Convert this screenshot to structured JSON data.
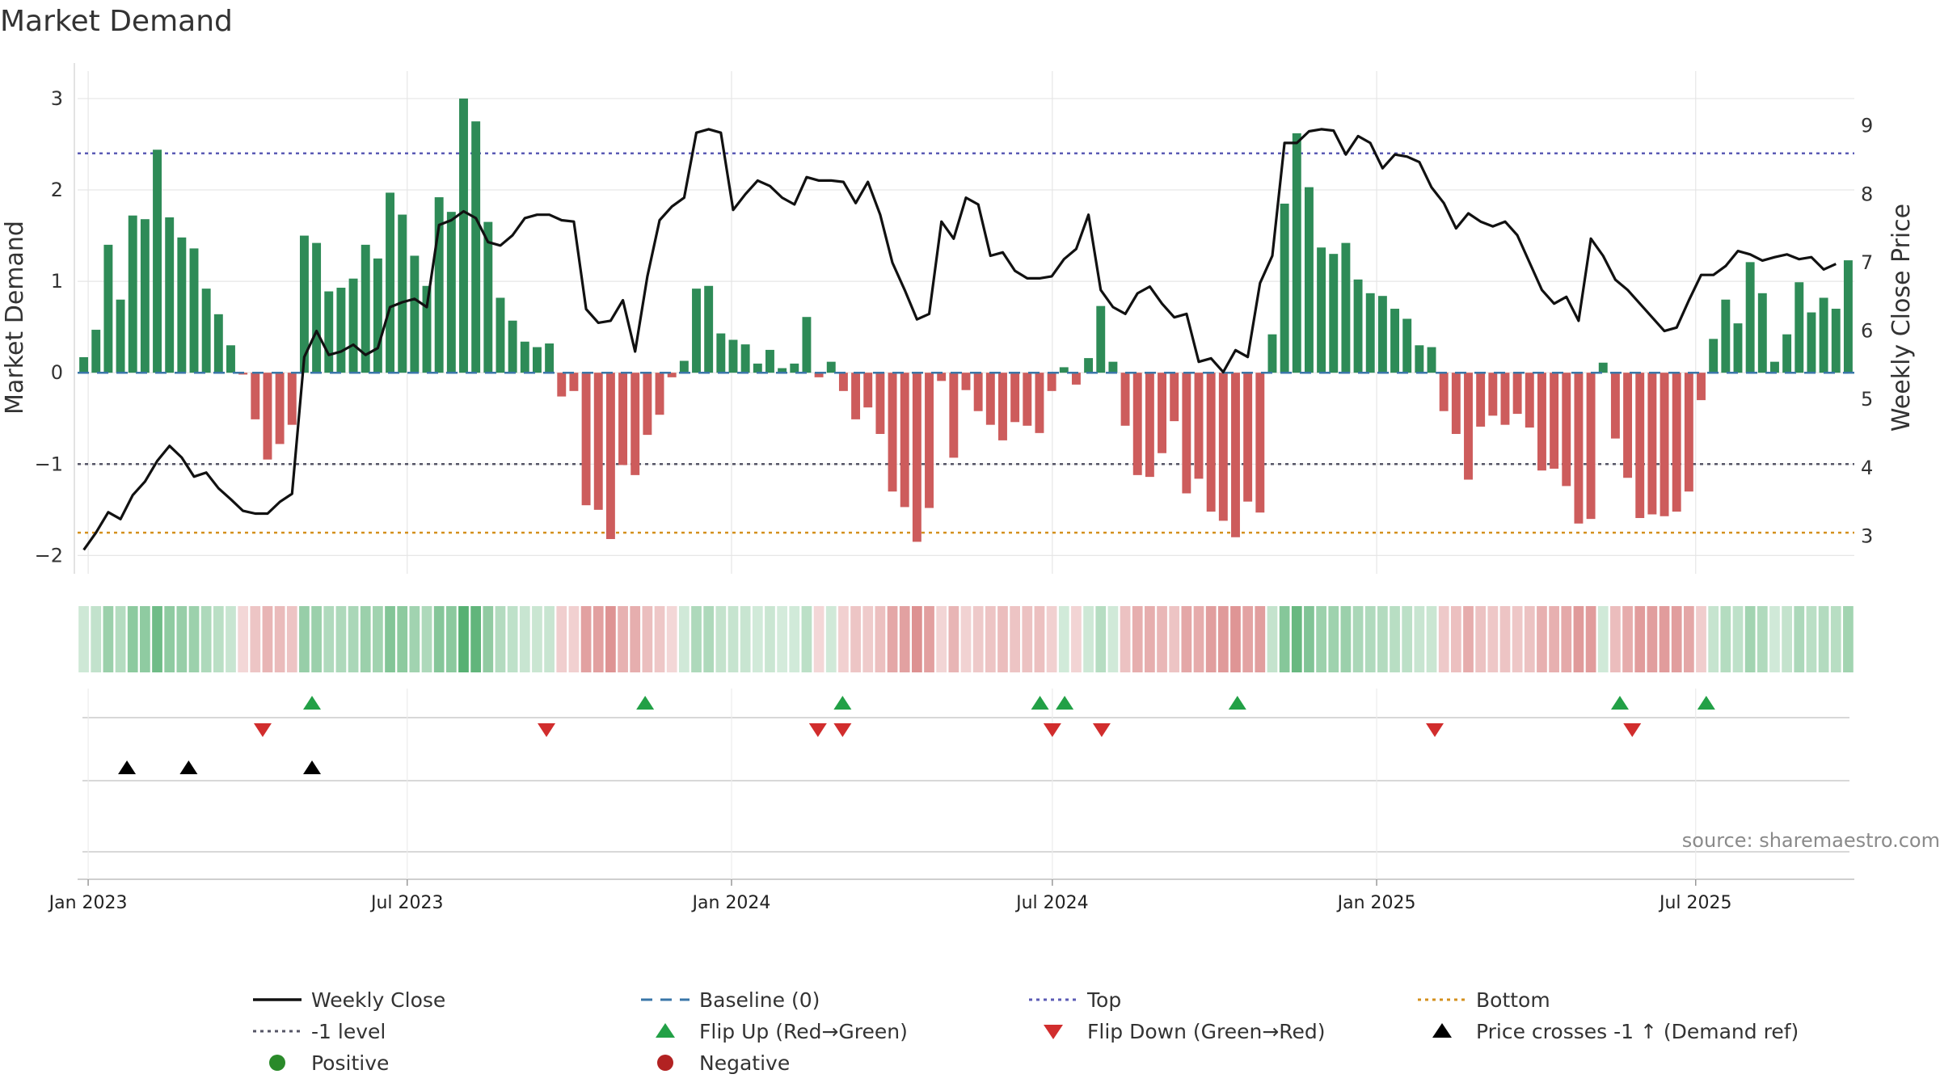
{
  "chart_data": {
    "type": "bar",
    "title": "Market Demand",
    "ylabel": "Market Demand",
    "y2label": "Weekly Close Price",
    "ylim": [
      -2.2,
      3.3
    ],
    "y2lim": [
      2.45,
      9.8
    ],
    "yticks": [
      -2,
      -1,
      0,
      1,
      2,
      3
    ],
    "y2ticks": [
      3,
      4,
      5,
      6,
      7,
      8,
      9
    ],
    "x_start": "2022-12-26",
    "x_end": "2025-09-29",
    "x_ticks": [
      {
        "date": "2023-01-01",
        "label": "Jan 2023"
      },
      {
        "date": "2023-07-01",
        "label": "Jul 2023"
      },
      {
        "date": "2024-01-01",
        "label": "Jan 2024"
      },
      {
        "date": "2024-07-01",
        "label": "Jul 2024"
      },
      {
        "date": "2025-01-01",
        "label": "Jan 2025"
      },
      {
        "date": "2025-07-01",
        "label": "Jul 2025"
      }
    ],
    "top_level": 2.4,
    "minus_one_level": -1,
    "bottom_level": -1.75,
    "demand": [
      0.17,
      0.47,
      1.4,
      0.8,
      1.72,
      1.68,
      2.44,
      1.7,
      1.48,
      1.36,
      0.92,
      0.64,
      0.3,
      -0.02,
      -0.51,
      -0.95,
      -0.78,
      -0.57,
      1.5,
      1.42,
      0.89,
      0.93,
      1.03,
      1.4,
      1.25,
      1.97,
      1.73,
      1.28,
      0.95,
      1.92,
      1.76,
      3.0,
      2.75,
      1.65,
      0.82,
      0.57,
      0.34,
      0.28,
      0.32,
      -0.26,
      -0.2,
      -1.45,
      -1.5,
      -1.82,
      -1.01,
      -1.12,
      -0.68,
      -0.46,
      -0.05,
      0.13,
      0.92,
      0.95,
      0.43,
      0.36,
      0.31,
      0.1,
      0.25,
      0.05,
      0.1,
      0.61,
      -0.05,
      0.12,
      -0.2,
      -0.51,
      -0.38,
      -0.67,
      -1.3,
      -1.47,
      -1.85,
      -1.48,
      -0.09,
      -0.93,
      -0.19,
      -0.42,
      -0.57,
      -0.74,
      -0.54,
      -0.58,
      -0.66,
      -0.2,
      0.06,
      -0.13,
      0.16,
      0.73,
      0.12,
      -0.58,
      -1.12,
      -1.14,
      -0.88,
      -0.53,
      -1.32,
      -1.16,
      -1.52,
      -1.62,
      -1.8,
      -1.41,
      -1.53,
      0.42,
      1.85,
      2.62,
      2.03,
      1.37,
      1.3,
      1.42,
      1.02,
      0.87,
      0.84,
      0.7,
      0.59,
      0.3,
      0.28,
      -0.42,
      -0.67,
      -1.17,
      -0.59,
      -0.47,
      -0.57,
      -0.45,
      -0.6,
      -1.07,
      -1.05,
      -1.24,
      -1.65,
      -1.6,
      0.11,
      -0.72,
      -1.15,
      -1.59,
      -1.55,
      -1.57,
      -1.52,
      -1.3,
      -0.3,
      0.37,
      0.8,
      0.54,
      1.21,
      0.87,
      0.12,
      0.42,
      0.99,
      0.66,
      0.82,
      0.7,
      1.23
    ],
    "price": [
      2.8,
      3.05,
      3.35,
      3.25,
      3.6,
      3.8,
      4.1,
      4.32,
      4.15,
      3.87,
      3.93,
      3.7,
      3.54,
      3.37,
      3.33,
      3.33,
      3.5,
      3.62,
      5.62,
      6.0,
      5.65,
      5.7,
      5.8,
      5.65,
      5.75,
      6.35,
      6.42,
      6.47,
      6.35,
      7.55,
      7.62,
      7.75,
      7.65,
      7.3,
      7.25,
      7.4,
      7.65,
      7.7,
      7.7,
      7.62,
      7.6,
      6.32,
      6.12,
      6.15,
      6.45,
      5.7,
      6.8,
      7.62,
      7.82,
      7.95,
      8.9,
      8.95,
      8.9,
      7.77,
      8.0,
      8.2,
      8.12,
      7.95,
      7.85,
      8.25,
      8.2,
      8.2,
      8.18,
      7.87,
      8.18,
      7.7,
      7.0,
      6.6,
      6.17,
      6.25,
      7.6,
      7.35,
      7.95,
      7.85,
      7.1,
      7.15,
      6.88,
      6.77,
      6.77,
      6.8,
      7.05,
      7.2,
      7.7,
      6.6,
      6.35,
      6.25,
      6.55,
      6.65,
      6.4,
      6.2,
      6.25,
      5.55,
      5.6,
      5.4,
      5.72,
      5.62,
      6.7,
      7.1,
      8.75,
      8.75,
      8.92,
      8.95,
      8.93,
      8.58,
      8.85,
      8.75,
      8.38,
      8.58,
      8.55,
      8.47,
      8.1,
      7.87,
      7.5,
      7.72,
      7.6,
      7.53,
      7.6,
      7.4,
      7.0,
      6.6,
      6.4,
      6.5,
      6.15,
      7.35,
      7.1,
      6.75,
      6.6,
      6.4,
      6.2,
      6.0,
      6.05,
      6.45,
      6.82,
      6.82,
      6.95,
      7.17,
      7.12,
      7.03,
      7.08,
      7.12,
      7.05,
      7.08,
      6.9,
      6.98
    ],
    "flip_up": [
      {
        "date": "2023-05-08"
      },
      {
        "date": "2023-11-13"
      },
      {
        "date": "2024-03-04"
      },
      {
        "date": "2024-06-24"
      },
      {
        "date": "2024-07-08"
      },
      {
        "date": "2024-10-14"
      },
      {
        "date": "2025-05-19"
      },
      {
        "date": "2025-07-07"
      }
    ],
    "flip_down": [
      {
        "date": "2023-04-10"
      },
      {
        "date": "2023-09-18"
      },
      {
        "date": "2024-02-19"
      },
      {
        "date": "2024-03-04"
      },
      {
        "date": "2024-07-01"
      },
      {
        "date": "2024-07-29"
      },
      {
        "date": "2025-02-03"
      },
      {
        "date": "2025-05-26"
      }
    ],
    "price_crosses": [
      {
        "date": "2023-01-23"
      },
      {
        "date": "2023-02-27"
      },
      {
        "date": "2023-05-08"
      }
    ],
    "legend": [
      {
        "label": "Weekly Close",
        "marker": "line-solid",
        "color": "#111111"
      },
      {
        "label": "Baseline (0)",
        "marker": "line-dash",
        "color": "#3a76a8"
      },
      {
        "label": "Top",
        "marker": "line-dot",
        "color": "#5b5bb5"
      },
      {
        "label": "Bottom",
        "marker": "line-dot",
        "color": "#d4901e"
      },
      {
        "label": "-1 level",
        "marker": "line-dot",
        "color": "#555566"
      },
      {
        "label": "Flip Up (Red→Green)",
        "marker": "triangle-up",
        "color": "#22a046"
      },
      {
        "label": "Flip Down (Green→Red)",
        "marker": "triangle-down",
        "color": "#d12d2d"
      },
      {
        "label": "Price crosses -1 ↑ (Demand ref)",
        "marker": "triangle-up",
        "color": "#000000"
      },
      {
        "label": "Positive",
        "marker": "circle",
        "color": "#2a8a2a"
      },
      {
        "label": "Negative",
        "marker": "circle",
        "color": "#b22222"
      }
    ],
    "legend_placement": "bottom",
    "source": "source: sharemaestro.com",
    "colors": {
      "positive": "#2e8b57",
      "negative": "#cd5c5c",
      "price": "#111111",
      "baseline": "#3a76a8",
      "top": "#5b5bb5",
      "bottom": "#d4901e",
      "minus_one": "#555566",
      "flip_up": "#22a046",
      "flip_down": "#d12d2d",
      "cross": "#000000",
      "grid": "#e6e6e6"
    }
  }
}
